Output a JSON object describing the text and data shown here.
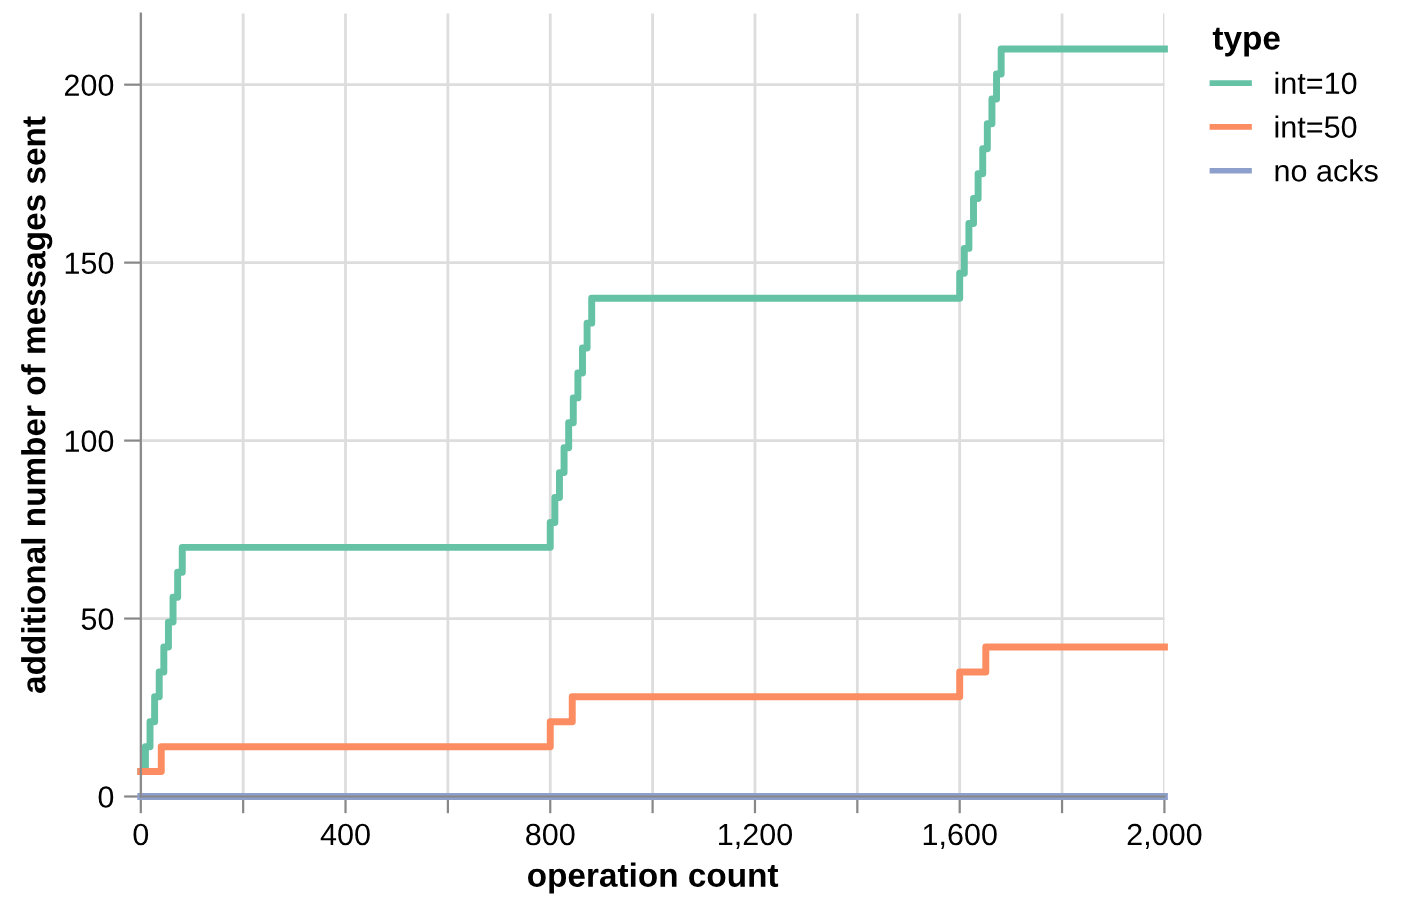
{
  "chart_data": {
    "type": "step",
    "xlabel": "operation count",
    "ylabel": "additional number of messages sent",
    "legend_title": "type",
    "legend": "top right",
    "grid": true,
    "xlim": [
      0,
      2000
    ],
    "ylim": [
      0,
      220
    ],
    "xticks": [
      0,
      {
        "value": 200,
        "label": null
      },
      {
        "value": 400,
        "label": "400"
      },
      {
        "value": 600,
        "label": null
      },
      {
        "value": 800,
        "label": "800"
      },
      {
        "value": 1000,
        "label": null
      },
      {
        "value": 1200,
        "label": "1,200"
      },
      {
        "value": 1400,
        "label": null
      },
      {
        "value": 1600,
        "label": "1,600"
      },
      {
        "value": 1800,
        "label": null
      },
      {
        "value": 2000,
        "label": "2,000"
      }
    ],
    "yticks": [
      0,
      50,
      100,
      150,
      200
    ],
    "series": [
      {
        "name": "int=10",
        "color": "#66c2a5",
        "x": [
          0,
          9,
          18,
          27,
          36,
          45,
          54,
          63,
          72,
          81,
          800,
          809,
          818,
          827,
          836,
          845,
          854,
          863,
          872,
          881,
          1600,
          1609,
          1618,
          1627,
          1636,
          1645,
          1654,
          1663,
          1672,
          1681,
          2000
        ],
        "values": [
          7,
          14,
          21,
          28,
          35,
          42,
          49,
          56,
          63,
          70,
          77,
          84,
          91,
          98,
          105,
          112,
          119,
          126,
          133,
          140,
          147,
          154,
          161,
          168,
          175,
          182,
          189,
          196,
          203,
          210,
          210
        ]
      },
      {
        "name": "int=50",
        "color": "#fc8d62",
        "x": [
          0,
          40,
          800,
          843,
          1600,
          1651,
          2000
        ],
        "values": [
          7,
          14,
          21,
          28,
          35,
          42,
          42
        ]
      },
      {
        "name": "no acks",
        "color": "#8da0cb",
        "x": [
          0,
          2000
        ],
        "values": [
          0,
          0
        ]
      }
    ]
  }
}
